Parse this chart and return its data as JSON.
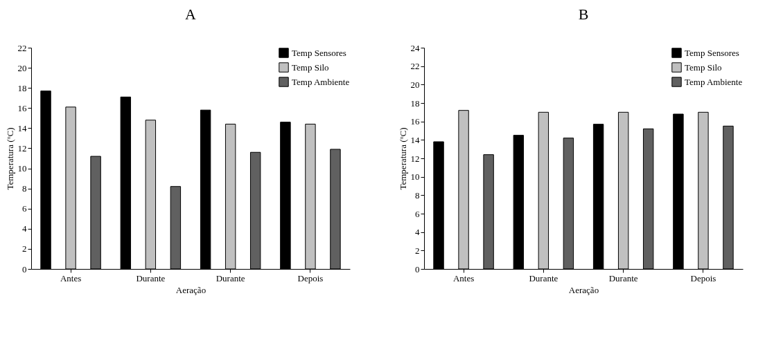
{
  "chart_data": [
    {
      "type": "bar",
      "title": "A",
      "xlabel": "Aeração",
      "ylabel": "Temperatura (ºC)",
      "categories": [
        "Antes",
        "Durante",
        "Durante",
        "Depois"
      ],
      "series": [
        {
          "name": "Temp Sensores",
          "color": "#000000",
          "values": [
            17.7,
            17.1,
            15.8,
            14.6
          ]
        },
        {
          "name": "Temp Silo",
          "color": "#c0c0c0",
          "values": [
            16.1,
            14.8,
            14.4,
            14.4
          ]
        },
        {
          "name": "Temp Ambiente",
          "color": "#606060",
          "values": [
            11.2,
            8.2,
            11.6,
            11.9
          ]
        }
      ],
      "ylim": [
        0,
        22
      ],
      "yticks": [
        0,
        2,
        4,
        6,
        8,
        10,
        12,
        14,
        16,
        18,
        20,
        22
      ],
      "legend": "top right"
    },
    {
      "type": "bar",
      "title": "B",
      "xlabel": "Aeração",
      "ylabel": "Temperatura (ºC)",
      "categories": [
        "Antes",
        "Durante",
        "Durante",
        "Depois"
      ],
      "series": [
        {
          "name": "Temp Sensores",
          "color": "#000000",
          "values": [
            13.8,
            14.5,
            15.7,
            16.8
          ]
        },
        {
          "name": "Temp Silo",
          "color": "#c0c0c0",
          "values": [
            17.2,
            17.0,
            17.0,
            17.0
          ]
        },
        {
          "name": "Temp Ambiente",
          "color": "#606060",
          "values": [
            12.4,
            14.2,
            15.2,
            15.5
          ]
        }
      ],
      "ylim": [
        0,
        24
      ],
      "yticks": [
        0,
        2,
        4,
        6,
        8,
        10,
        12,
        14,
        16,
        18,
        20,
        22,
        24
      ],
      "legend": "top right"
    }
  ]
}
